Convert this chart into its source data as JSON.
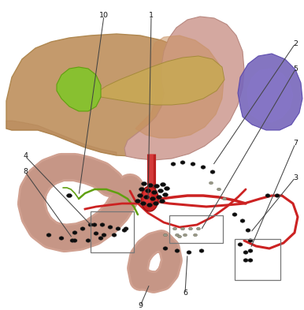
{
  "background_color": "#ffffff",
  "figsize": [
    3.86,
    3.93
  ],
  "dpi": 100,
  "liver_color": "#c49a6c",
  "liver_edge": "#b08850",
  "stomach_color": "#d4a8a0",
  "stomach_edge": "#b88880",
  "spleen_color": "#7766bb",
  "spleen_edge": "#5544aa",
  "gb_color": "#88c030",
  "gb_edge": "#60a010",
  "pancreas_color": "#c8a855",
  "duod_color": "#d4a898",
  "vessel_color": "#cc2222",
  "node_black": "#0d0d0d",
  "node_gray": "#888877",
  "label_color": "#111111",
  "line_color": "#555555"
}
